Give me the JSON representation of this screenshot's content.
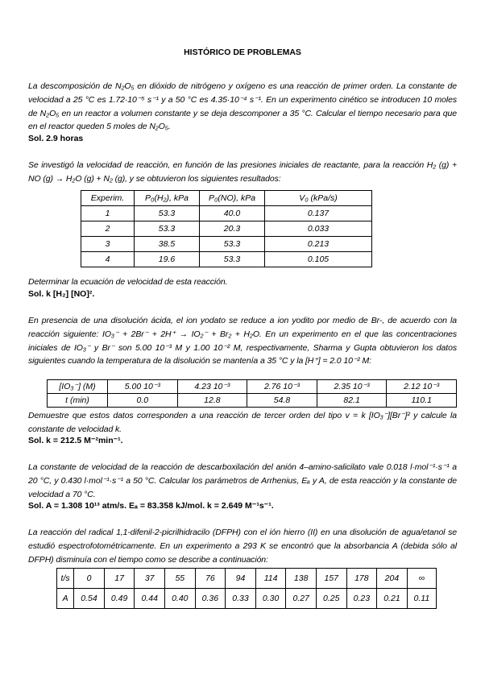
{
  "title": "HISTÓRICO DE PROBLEMAS",
  "problems": [
    {
      "text": "La descomposición de N₂O₅ en dióxido de nitrógeno y oxígeno es una reacción de primer orden. La constante de velocidad a 25 °C es 1.72·10⁻⁵ s⁻¹ y a 50 °C es 4.35·10⁻⁴ s⁻¹. En un experimento cinético se introducen 10 moles de N₂O₅ en un reactor a volumen constante y se deja descomponer a 35 °C. Calcular el tiempo necesario para que en el reactor queden 5 moles de N₂O₅.",
      "solution": "Sol. 2.9 horas"
    },
    {
      "text": "Se investigó la velocidad de reacción, en función de las presiones iniciales de reactante, para la reacción H₂ (g) + NO (g) → H₂O (g) + N₂ (g), y se obtuvieron los siguientes resultados:",
      "table": {
        "headers": [
          "Experim.",
          "P₀(H₂), kPa",
          "P₀(NO), kPa",
          "V₀ (kPa/s)"
        ],
        "rows": [
          [
            "1",
            "53.3",
            "40.0",
            "0.137"
          ],
          [
            "2",
            "53.3",
            "20.3",
            "0.033"
          ],
          [
            "3",
            "38.5",
            "53.3",
            "0.213"
          ],
          [
            "4",
            "19.6",
            "53.3",
            "0.105"
          ]
        ]
      },
      "question": "Determinar la ecuación de velocidad de esta reacción.",
      "solution": "Sol. k [H₂] [NO]²."
    },
    {
      "text": "En presencia de una disolución ácida, el ion yodato se reduce a ion yodito por medio de Br-, de acuerdo con la reacción siguiente: IO₃⁻ + 2Br⁻ + 2H⁺ → IO₂⁻ + Br₂ + H₂O. En un experimento en el que las concentraciones iniciales de IO₃⁻ y Br⁻ son 5.00 10⁻³ M y 1.00 10⁻² M, respectivamente, Sharma y Gupta obtuvieron los datos siguientes cuando la temperatura de la disolución se mantenía a 35 °C y la [H⁺] = 2.0 10⁻² M:",
      "table": {
        "rows": [
          [
            "[IO₃⁻] (M)",
            "5.00 10⁻³",
            "4.23 10⁻³",
            "2.76 10⁻³",
            "2.35 10⁻³",
            "2.12 10⁻³"
          ],
          [
            "t (min)",
            "0.0",
            "12.8",
            "54.8",
            "82.1",
            "110.1"
          ]
        ]
      },
      "question": "Demuestre que estos datos corresponden a una reacción de tercer orden del tipo v = k [IO₃⁻][Br⁻]² y calcule la constante de velocidad k.",
      "solution": "Sol. k = 212.5 M⁻²min⁻¹."
    },
    {
      "text": "La constante de velocidad de la reacción de descarboxilación del anión 4–amino-salicilato vale 0.018 l·mol⁻¹·s⁻¹ a 20 °C, y 0.430 l·mol⁻¹·s⁻¹ a 50 °C. Calcular los parámetros de Arrhenius, Eₐ y A, de esta reacción y la constante de velocidad a 70 °C.",
      "solution": "Sol. A = 1.308 10¹³ atm/s. Eₐ = 83.358 kJ/mol.  k = 2.649 M⁻¹s⁻¹."
    },
    {
      "text": "La reacción del radical 1,1-difenil-2-picrilhidracilo (DFPH) con el ión hierro (II) en una disolución de agua/etanol se estudió espectrofotométricamente. En un experimento a 293 K se encontró que la absorbancia A (debida sólo al DFPH) disminuía con el tiempo como se describe a continuación:",
      "table": {
        "rows": [
          [
            "t/s",
            "0",
            "17",
            "37",
            "55",
            "76",
            "94",
            "114",
            "138",
            "157",
            "178",
            "204",
            "∞"
          ],
          [
            "A",
            "0.54",
            "0.49",
            "0.44",
            "0.40",
            "0.36",
            "0.33",
            "0.30",
            "0.27",
            "0.25",
            "0.23",
            "0.21",
            "0.11"
          ]
        ]
      }
    }
  ]
}
